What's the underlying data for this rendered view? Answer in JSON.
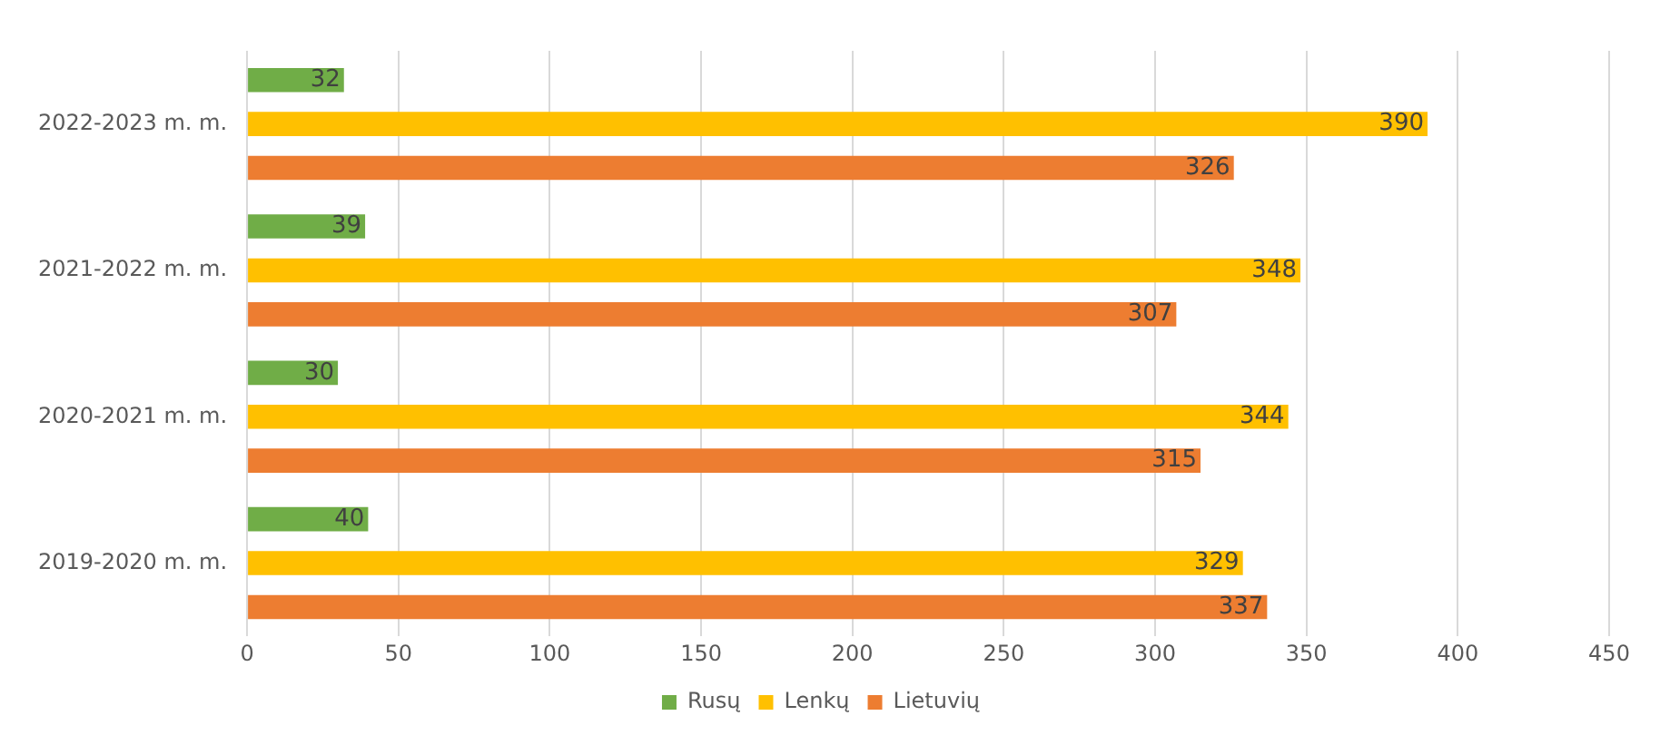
{
  "chart_data": {
    "type": "bar",
    "orientation": "horizontal",
    "categories": [
      "2022-2023 m. m.",
      "2021-2022 m. m.",
      "2020-2021 m. m.",
      "2019-2020 m. m."
    ],
    "series": [
      {
        "name": "Rusų",
        "color": "#70ad47",
        "values": [
          32,
          39,
          30,
          40
        ]
      },
      {
        "name": "Lenkų",
        "color": "#ffc000",
        "values": [
          390,
          348,
          344,
          329
        ]
      },
      {
        "name": "Lietuvių",
        "color": "#ed7d31",
        "values": [
          326,
          307,
          315,
          337
        ]
      }
    ],
    "xlim": [
      0,
      450
    ],
    "xticks": [
      0,
      50,
      100,
      150,
      200,
      250,
      300,
      350,
      400,
      450
    ],
    "grid": "x",
    "legend": "bottom",
    "data_labels": true
  }
}
